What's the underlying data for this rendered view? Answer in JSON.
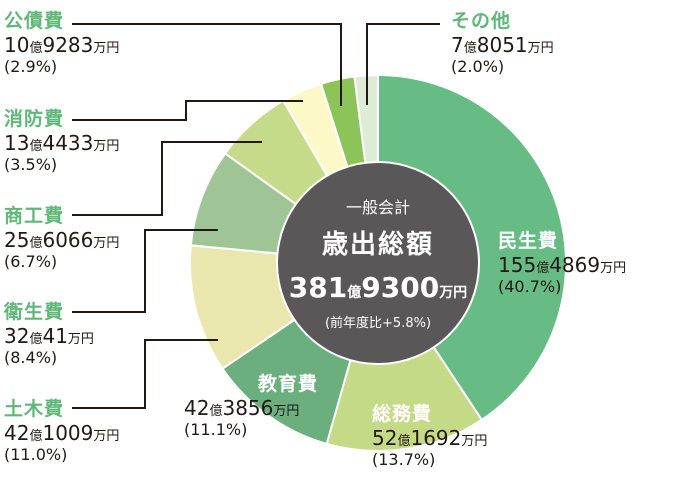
{
  "center": {
    "subtitle": "一般会計",
    "title": "歳出総額",
    "total_oku": "381",
    "oku_unit": "億",
    "total_man": "9300",
    "man_unit": "万円",
    "change": "(前年度比+5.8%)"
  },
  "labels": [
    {
      "name": "公債費",
      "oku": "10",
      "man": "9283",
      "pct": "(2.9%)"
    },
    {
      "name": "消防費",
      "oku": "13",
      "man": "4433",
      "pct": "(3.5%)"
    },
    {
      "name": "商工費",
      "oku": "25",
      "man": "6066",
      "pct": "(6.7%)"
    },
    {
      "name": "衛生費",
      "oku": "32",
      "man": "41",
      "pct": "(8.4%)"
    },
    {
      "name": "土木費",
      "oku": "42",
      "man": "1009",
      "pct": "(11.0%)"
    },
    {
      "name": "教育費",
      "oku": "42",
      "man": "3856",
      "pct": "(11.1%)"
    },
    {
      "name": "総務費",
      "oku": "52",
      "man": "1692",
      "pct": "(13.7%)"
    },
    {
      "name": "民生費",
      "oku": "155",
      "man": "4869",
      "pct": "(40.7%)"
    },
    {
      "name": "その他",
      "oku": "7",
      "man": "8051",
      "pct": "(2.0%)"
    }
  ],
  "units": {
    "oku": "億",
    "man": "万円"
  },
  "chart_data": {
    "type": "pie",
    "title": "一般会計 歳出総額 381億9300万円 (前年度比+5.8%)",
    "donut": true,
    "start": "12 o'clock, clockwise",
    "categories": [
      "民生費",
      "総務費",
      "教育費",
      "土木費",
      "衛生費",
      "商工費",
      "消防費",
      "公債費",
      "その他"
    ],
    "values": [
      40.7,
      13.7,
      11.1,
      11.0,
      8.4,
      6.7,
      3.5,
      2.9,
      2.0
    ],
    "amounts_yen": [
      "155億4869万円",
      "52億1692万円",
      "42億3856万円",
      "42億1009万円",
      "32億41万円",
      "25億6066万円",
      "13億4433万円",
      "10億9283万円",
      "7億8051万円"
    ],
    "colors": [
      "#67bc85",
      "#c4da86",
      "#6aaf7d",
      "#e9e6ae",
      "#9fc596",
      "#c6db8a",
      "#fdf8c8",
      "#8cc459",
      "#deecd6"
    ],
    "center_color": "#595757"
  }
}
